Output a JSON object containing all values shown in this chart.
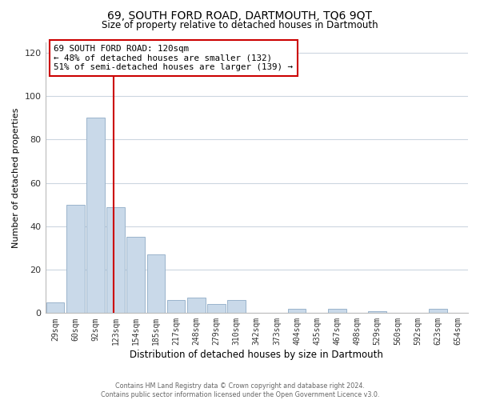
{
  "title": "69, SOUTH FORD ROAD, DARTMOUTH, TQ6 9QT",
  "subtitle": "Size of property relative to detached houses in Dartmouth",
  "xlabel": "Distribution of detached houses by size in Dartmouth",
  "ylabel": "Number of detached properties",
  "footer_line1": "Contains HM Land Registry data © Crown copyright and database right 2024.",
  "footer_line2": "Contains public sector information licensed under the Open Government Licence v3.0.",
  "bin_labels": [
    "29sqm",
    "60sqm",
    "92sqm",
    "123sqm",
    "154sqm",
    "185sqm",
    "217sqm",
    "248sqm",
    "279sqm",
    "310sqm",
    "342sqm",
    "373sqm",
    "404sqm",
    "435sqm",
    "467sqm",
    "498sqm",
    "529sqm",
    "560sqm",
    "592sqm",
    "623sqm",
    "654sqm"
  ],
  "bar_values": [
    5,
    50,
    90,
    49,
    35,
    27,
    6,
    7,
    4,
    6,
    0,
    0,
    2,
    0,
    2,
    0,
    1,
    0,
    0,
    2,
    0
  ],
  "bar_color": "#c9d9e9",
  "bar_edgecolor": "#9ab4cc",
  "vline_x": 120,
  "vline_color": "#cc0000",
  "annotation_title": "69 SOUTH FORD ROAD: 120sqm",
  "annotation_line1": "← 48% of detached houses are smaller (132)",
  "annotation_line2": "51% of semi-detached houses are larger (139) →",
  "annotation_box_edgecolor": "#cc0000",
  "annotation_box_facecolor": "#ffffff",
  "ylim": [
    0,
    125
  ],
  "yticks": [
    0,
    20,
    40,
    60,
    80,
    100,
    120
  ],
  "background_color": "#ffffff",
  "grid_color": "#ccd6e0"
}
